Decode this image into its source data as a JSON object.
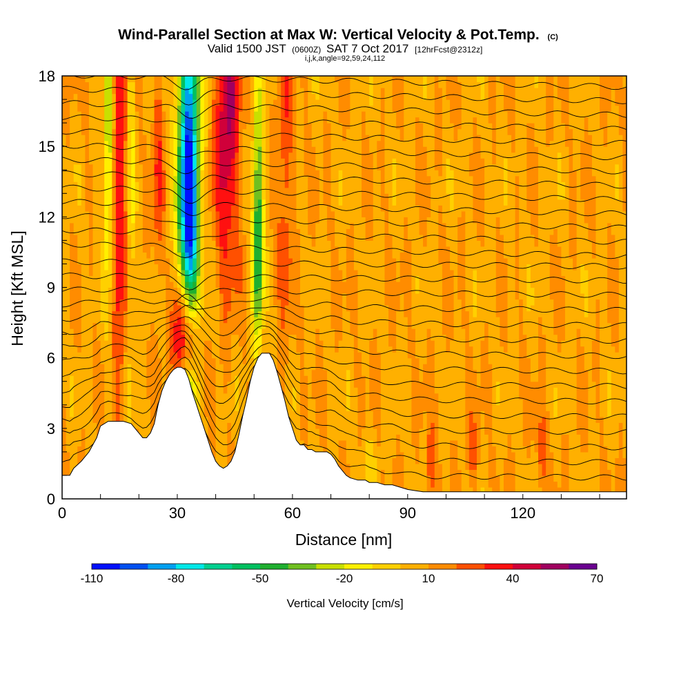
{
  "chart_data": {
    "type": "heatmap",
    "title": "Wind-Parallel Section at Max W: Vertical Velocity & Pot.Temp.",
    "title_suffix": "(C)",
    "subtitle_parts": [
      "Valid 1500 JST",
      "(0600Z)",
      "SAT 7 Oct 2017",
      "[12hrFcst@2312z]"
    ],
    "subtitle_line3": "i,j,k,angle=92,59,24,112",
    "xlabel": "Distance [nm]",
    "ylabel": "Height [Kft MSL]",
    "xlim": [
      0,
      147
    ],
    "ylim": [
      0,
      18
    ],
    "x_ticks": [
      "0",
      "30",
      "60",
      "90",
      "120"
    ],
    "x_tick_values": [
      0,
      30,
      60,
      90,
      120
    ],
    "y_ticks": [
      "0",
      "3",
      "6",
      "9",
      "12",
      "15",
      "18"
    ],
    "y_tick_values": [
      0,
      3,
      6,
      9,
      12,
      15,
      18
    ],
    "colorbar": {
      "label": "Vertical Velocity [cm/s]",
      "tick_labels": [
        "-110",
        "-80",
        "-50",
        "-20",
        "10",
        "40",
        "70"
      ],
      "tick_values": [
        -110,
        -80,
        -50,
        -20,
        10,
        40,
        70
      ],
      "range": [
        -110,
        70
      ],
      "step": 10,
      "colors": [
        "#0010ff",
        "#0050f0",
        "#00a0f0",
        "#00e8e8",
        "#00d090",
        "#00c060",
        "#20b030",
        "#70c020",
        "#c8e000",
        "#fff000",
        "#ffd000",
        "#ffb000",
        "#ff8c00",
        "#ff5000",
        "#ff1010",
        "#d0003a",
        "#a00060",
        "#6a0090"
      ]
    },
    "terrain": [
      [
        0,
        1.0
      ],
      [
        2,
        1.0
      ],
      [
        3,
        1.3
      ],
      [
        5,
        1.6
      ],
      [
        7,
        2.0
      ],
      [
        9,
        2.6
      ],
      [
        10,
        3.1
      ],
      [
        12,
        3.3
      ],
      [
        14,
        3.3
      ],
      [
        16,
        3.3
      ],
      [
        18,
        3.2
      ],
      [
        19,
        3.0
      ],
      [
        20,
        2.8
      ],
      [
        21,
        2.6
      ],
      [
        22,
        2.6
      ],
      [
        23,
        2.8
      ],
      [
        24,
        3.2
      ],
      [
        25,
        4.0
      ],
      [
        26,
        4.6
      ],
      [
        27,
        5.0
      ],
      [
        28,
        5.3
      ],
      [
        29,
        5.5
      ],
      [
        30,
        5.6
      ],
      [
        31,
        5.6
      ],
      [
        32,
        5.5
      ],
      [
        33,
        5.1
      ],
      [
        34,
        4.5
      ],
      [
        35,
        4.0
      ],
      [
        36,
        3.5
      ],
      [
        37,
        3.0
      ],
      [
        38,
        2.5
      ],
      [
        39,
        2.0
      ],
      [
        40,
        1.6
      ],
      [
        41,
        1.4
      ],
      [
        42,
        1.3
      ],
      [
        43,
        1.4
      ],
      [
        44,
        1.6
      ],
      [
        45,
        2.0
      ],
      [
        46,
        2.7
      ],
      [
        47,
        3.5
      ],
      [
        48,
        4.2
      ],
      [
        49,
        5.0
      ],
      [
        50,
        5.6
      ],
      [
        51,
        6.0
      ],
      [
        52,
        6.2
      ],
      [
        53,
        6.2
      ],
      [
        54,
        6.2
      ],
      [
        55,
        5.9
      ],
      [
        56,
        5.4
      ],
      [
        57,
        4.8
      ],
      [
        58,
        4.2
      ],
      [
        59,
        3.5
      ],
      [
        60,
        3.0
      ],
      [
        61,
        2.5
      ],
      [
        62,
        2.3
      ],
      [
        63,
        2.3
      ],
      [
        64,
        2.1
      ],
      [
        65,
        2.1
      ],
      [
        66,
        2.0
      ],
      [
        67,
        2.0
      ],
      [
        68,
        2.0
      ],
      [
        69,
        2.0
      ],
      [
        70,
        1.9
      ],
      [
        71,
        1.7
      ],
      [
        72,
        1.4
      ],
      [
        73,
        1.2
      ],
      [
        74,
        1.0
      ],
      [
        75,
        0.9
      ],
      [
        77,
        0.8
      ],
      [
        79,
        0.8
      ],
      [
        80,
        0.7
      ],
      [
        82,
        0.7
      ],
      [
        84,
        0.6
      ],
      [
        86,
        0.6
      ],
      [
        88,
        0.5
      ],
      [
        90,
        0.4
      ],
      [
        92,
        0.35
      ],
      [
        94,
        0.3
      ],
      [
        96,
        0.3
      ],
      [
        98,
        0.3
      ],
      [
        100,
        0.3
      ],
      [
        147,
        0.3
      ]
    ],
    "theta_line_heights": [
      1.6,
      2.2,
      2.8,
      3.4,
      4.0,
      4.6,
      5.2,
      5.8,
      6.4,
      7.0,
      7.6,
      8.2,
      8.8,
      9.4,
      10.0,
      10.6,
      11.2,
      11.8,
      12.4,
      13.0,
      13.6,
      14.2,
      14.8,
      15.4,
      16.0,
      16.6,
      17.2,
      17.8
    ],
    "velocity_features": [
      {
        "x": 33,
        "y": 14.5,
        "sx": 2.0,
        "sy": 6.0,
        "v": -105
      },
      {
        "x": 33,
        "y": 11.5,
        "sx": 1.5,
        "sy": 2.0,
        "v": -30
      },
      {
        "x": 33,
        "y": 3.5,
        "sx": 1.4,
        "sy": 1.3,
        "v": -45
      },
      {
        "x": 31,
        "y": 7.0,
        "sx": 1.6,
        "sy": 1.7,
        "v": 55
      },
      {
        "x": 34,
        "y": 6.6,
        "sx": 1.5,
        "sy": 1.4,
        "v": 35
      },
      {
        "x": 43,
        "y": 16.0,
        "sx": 2.2,
        "sy": 4.5,
        "v": 45
      },
      {
        "x": 51,
        "y": 10.5,
        "sx": 1.0,
        "sy": 3.0,
        "v": -55
      },
      {
        "x": 51,
        "y": 15.0,
        "sx": 1.0,
        "sy": 3.0,
        "v": -25
      },
      {
        "x": 15,
        "y": 13.0,
        "sx": 1.2,
        "sy": 7.0,
        "v": 30
      },
      {
        "x": 12,
        "y": 15.0,
        "sx": 0.8,
        "sy": 4.0,
        "v": -40
      },
      {
        "x": 18,
        "y": 14.0,
        "sx": 0.7,
        "sy": 6.0,
        "v": -20
      },
      {
        "x": 25,
        "y": 14.0,
        "sx": 1.0,
        "sy": 4.0,
        "v": 20
      },
      {
        "x": 58,
        "y": 14.0,
        "sx": 1.5,
        "sy": 5.0,
        "v": 20
      },
      {
        "x": 96,
        "y": 1.5,
        "sx": 0.8,
        "sy": 1.2,
        "v": 25
      },
      {
        "x": 107,
        "y": 2.0,
        "sx": 1.0,
        "sy": 1.0,
        "v": 20
      },
      {
        "x": 125,
        "y": 2.0,
        "sx": 1.0,
        "sy": 1.2,
        "v": 20
      },
      {
        "x": 80,
        "y": 1.5,
        "sx": 1.5,
        "sy": 1.0,
        "v": -10
      }
    ]
  }
}
